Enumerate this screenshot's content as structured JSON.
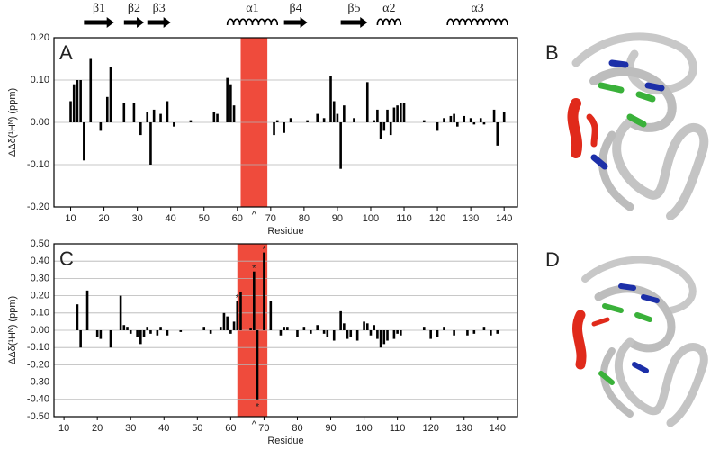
{
  "chart_data": [
    {
      "type": "bar",
      "panel_label": "A",
      "xlabel": "Residue",
      "ylabel": "ΔΔδ(¹Hᴺ) (ppm)",
      "color": "#000000",
      "x": [
        10,
        11,
        12,
        13,
        14,
        16,
        19,
        21,
        22,
        26,
        29,
        31,
        33,
        34,
        35,
        37,
        39,
        41,
        46,
        53,
        54,
        57,
        58,
        59,
        71,
        72,
        74,
        76,
        81,
        84,
        86,
        88,
        89,
        90,
        91,
        92,
        95,
        99,
        101,
        102,
        103,
        104,
        105,
        106,
        107,
        108,
        109,
        110,
        116,
        120,
        122,
        124,
        125,
        126,
        128,
        130,
        131,
        133,
        134,
        137,
        138,
        140
      ],
      "values": [
        0.05,
        0.09,
        0.1,
        0.1,
        -0.09,
        0.15,
        -0.02,
        0.06,
        0.13,
        0.045,
        0.045,
        -0.03,
        0.025,
        -0.1,
        0.03,
        0.02,
        0.05,
        -0.01,
        0.005,
        0.025,
        0.02,
        0.105,
        0.09,
        0.04,
        -0.03,
        0.005,
        -0.025,
        0.01,
        0.005,
        0.02,
        0.01,
        0.11,
        0.05,
        0.02,
        -0.11,
        0.04,
        0.01,
        0.095,
        0.005,
        0.03,
        -0.04,
        -0.02,
        0.03,
        -0.03,
        0.035,
        0.04,
        0.045,
        0.045,
        0.005,
        -0.02,
        0.01,
        0.015,
        0.02,
        -0.01,
        0.015,
        0.01,
        -0.005,
        0.01,
        -0.005,
        0.03,
        -0.055,
        0.025
      ],
      "xlim": [
        5,
        144
      ],
      "ylim": [
        -0.2,
        0.2
      ],
      "xticks": [
        10,
        20,
        30,
        40,
        50,
        60,
        70,
        80,
        90,
        100,
        110,
        120,
        130,
        140
      ],
      "yticks": [
        {
          "value": -0.2,
          "label": "-0.20"
        },
        {
          "value": -0.1,
          "label": "-0.10"
        },
        {
          "value": 0,
          "label": "0.00"
        },
        {
          "value": 0.1,
          "label": "0.10"
        },
        {
          "value": 0.2,
          "label": "0.20"
        }
      ],
      "grid": true,
      "highlight": {
        "range": [
          61,
          69
        ],
        "color": "#ef4b3c"
      },
      "annotation": {
        "text": "^",
        "x": 65
      },
      "secondary_structure": [
        {
          "label": "β1",
          "kind": "strand",
          "start": 14,
          "end": 23
        },
        {
          "label": "β2",
          "kind": "strand",
          "start": 26,
          "end": 32
        },
        {
          "label": "β3",
          "kind": "strand",
          "start": 33,
          "end": 40
        },
        {
          "label": "α1",
          "kind": "helix",
          "start": 57,
          "end": 72
        },
        {
          "label": "β4",
          "kind": "strand",
          "start": 74,
          "end": 81
        },
        {
          "label": "β5",
          "kind": "strand",
          "start": 91,
          "end": 99
        },
        {
          "label": "α2",
          "kind": "helix",
          "start": 102,
          "end": 109
        },
        {
          "label": "α3",
          "kind": "helix",
          "start": 123,
          "end": 141
        }
      ]
    },
    {
      "type": "bar",
      "panel_label": "C",
      "xlabel": "Residue",
      "ylabel": "ΔΔδ(¹Hᴺ) (ppm)",
      "color": "#000000",
      "x": [
        14,
        15,
        17,
        20,
        21,
        24,
        27,
        28,
        29,
        30,
        32,
        33,
        34,
        35,
        36,
        38,
        39,
        41,
        45,
        52,
        54,
        57,
        58,
        59,
        60,
        61,
        62,
        63,
        66,
        67,
        68,
        70,
        72,
        75,
        76,
        77,
        80,
        82,
        84,
        86,
        88,
        89,
        91,
        93,
        94,
        95,
        96,
        98,
        100,
        101,
        102,
        103,
        104,
        105,
        106,
        107,
        109,
        110,
        111,
        118,
        120,
        122,
        124,
        127,
        131,
        133,
        136,
        138,
        140
      ],
      "values": [
        0.15,
        -0.1,
        0.23,
        -0.04,
        -0.05,
        -0.1,
        0.2,
        0.03,
        0.02,
        -0.02,
        -0.04,
        -0.08,
        -0.04,
        0.02,
        -0.02,
        -0.03,
        0.02,
        -0.03,
        -0.01,
        0.02,
        -0.02,
        0.02,
        0.1,
        0.08,
        -0.02,
        0.05,
        0.17,
        0.22,
        0.01,
        0.34,
        -0.4,
        0.45,
        0.17,
        -0.03,
        0.02,
        0.02,
        -0.04,
        0.02,
        -0.02,
        0.03,
        -0.02,
        -0.04,
        -0.06,
        0.11,
        0.04,
        -0.05,
        -0.04,
        -0.06,
        0.05,
        0.04,
        -0.03,
        0.03,
        -0.05,
        -0.1,
        -0.08,
        -0.06,
        -0.05,
        -0.02,
        -0.03,
        0.02,
        -0.05,
        -0.04,
        0.02,
        -0.03,
        -0.03,
        -0.02,
        0.02,
        -0.03,
        -0.02
      ],
      "xlim": [
        7,
        146
      ],
      "ylim": [
        -0.5,
        0.5
      ],
      "xticks": [
        10,
        20,
        30,
        40,
        50,
        60,
        70,
        80,
        90,
        100,
        110,
        120,
        130,
        140
      ],
      "yticks": [
        {
          "value": -0.5,
          "label": "-0.50"
        },
        {
          "value": -0.4,
          "label": "-0.40"
        },
        {
          "value": -0.3,
          "label": "-0.30"
        },
        {
          "value": -0.2,
          "label": "-0.20"
        },
        {
          "value": -0.1,
          "label": "-0.10"
        },
        {
          "value": 0,
          "label": "0.00"
        },
        {
          "value": 0.1,
          "label": "0.10"
        },
        {
          "value": 0.2,
          "label": "0.20"
        },
        {
          "value": 0.3,
          "label": "0.30"
        },
        {
          "value": 0.4,
          "label": "0.40"
        },
        {
          "value": 0.5,
          "label": "0.50"
        }
      ],
      "grid": true,
      "highlight": {
        "range": [
          62,
          71
        ],
        "color": "#ef4b3c"
      },
      "annotation": {
        "text": "^",
        "x": 67
      },
      "markers": {
        "symbol": "*",
        "x": [
          62,
          67,
          68,
          70
        ]
      }
    }
  ],
  "structure_panels": [
    "B",
    "D"
  ]
}
